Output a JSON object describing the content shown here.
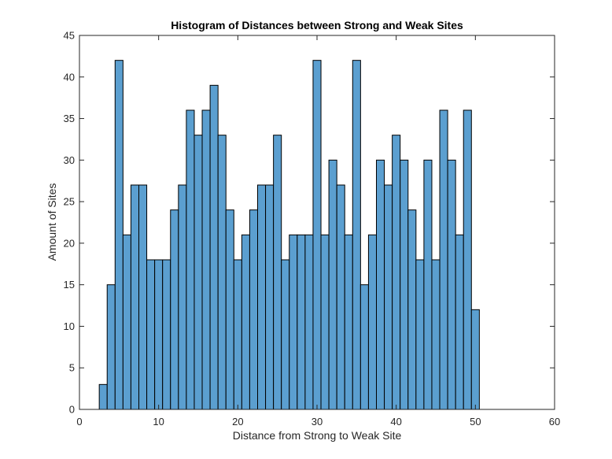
{
  "chart_data": {
    "type": "bar",
    "title": "Histogram of Distances between Strong and Weak Sites",
    "xlabel": "Distance from Strong to Weak Site",
    "ylabel": "Amount of Sites",
    "xlim": [
      0,
      60
    ],
    "ylim": [
      0,
      45
    ],
    "xticks": [
      0,
      10,
      20,
      30,
      40,
      50,
      60
    ],
    "yticks": [
      0,
      5,
      10,
      15,
      20,
      25,
      30,
      35,
      40,
      45
    ],
    "bin_width": 1,
    "bins_start": 2.5,
    "values": [
      3,
      15,
      42,
      21,
      27,
      27,
      18,
      18,
      18,
      24,
      27,
      36,
      33,
      36,
      39,
      33,
      24,
      18,
      21,
      24,
      27,
      27,
      33,
      18,
      21,
      21,
      21,
      42,
      21,
      30,
      27,
      21,
      42,
      15,
      21,
      30,
      27,
      33,
      30,
      24,
      18,
      30,
      18,
      36,
      30,
      21,
      36,
      12
    ],
    "bar_color": "#5b9fd0",
    "edge_color": "#000000",
    "grid": false,
    "legend": "none"
  }
}
